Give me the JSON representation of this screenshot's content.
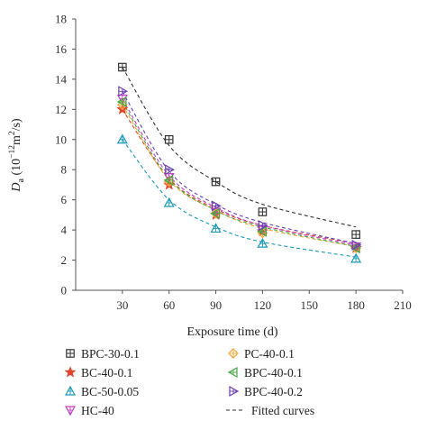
{
  "chart_data": {
    "type": "scatter",
    "xlabel": "Exposure time (d)",
    "ylabel": {
      "main": "D",
      "sub": "a",
      "pre": " (10",
      "sup1": "−12",
      "mid": "m",
      "sup2": "2",
      "post": "/s)"
    },
    "xlim": [
      0,
      210
    ],
    "ylim": [
      0,
      18
    ],
    "xticks": [
      30,
      60,
      90,
      120,
      150,
      180,
      210
    ],
    "yticks": [
      0,
      2,
      4,
      6,
      8,
      10,
      12,
      14,
      16,
      18
    ],
    "x": [
      30,
      60,
      90,
      120,
      180
    ],
    "series": [
      {
        "name": "BPC-30-0.1",
        "values": [
          14.8,
          10.0,
          7.2,
          5.2,
          3.7
        ],
        "fit": [
          14.8,
          9.6,
          7.2,
          5.7,
          4.2
        ],
        "color": "#333333",
        "marker": "boxplus"
      },
      {
        "name": "BC-40-0.1",
        "values": [
          12.0,
          7.0,
          5.0,
          3.9,
          2.8
        ],
        "fit": [
          12.0,
          7.4,
          5.4,
          4.3,
          3.1
        ],
        "color": "#e2452b",
        "marker": "star"
      },
      {
        "name": "BC-50-0.05",
        "values": [
          10.0,
          5.8,
          4.1,
          3.1,
          2.1
        ],
        "fit": [
          10.0,
          6.0,
          4.2,
          3.2,
          2.2
        ],
        "color": "#1b9bb8",
        "marker": "triangle"
      },
      {
        "name": "HC-40",
        "values": [
          12.7,
          7.5,
          5.2,
          4.0,
          2.9
        ],
        "fit": [
          12.7,
          7.6,
          5.5,
          4.3,
          3.0
        ],
        "color": "#c83fc8",
        "marker": "down-triangle"
      },
      {
        "name": "PC-40-0.1",
        "values": [
          12.3,
          7.2,
          5.1,
          3.8,
          2.8
        ],
        "fit": [
          12.3,
          7.3,
          5.3,
          4.1,
          2.9
        ],
        "color": "#f2a93b",
        "marker": "diamond"
      },
      {
        "name": "BPC-40-0.1",
        "values": [
          12.5,
          7.3,
          5.1,
          3.9,
          2.8
        ],
        "fit": [
          12.5,
          7.4,
          5.3,
          4.2,
          2.9
        ],
        "color": "#46a546",
        "marker": "left-triangle"
      },
      {
        "name": "BPC-40-0.2",
        "values": [
          13.2,
          8.0,
          5.6,
          4.3,
          3.0
        ],
        "fit": [
          13.2,
          7.9,
          5.7,
          4.5,
          3.1
        ],
        "color": "#6a3fb8",
        "marker": "right-triangle"
      }
    ],
    "fitted_label": "Fitted curves",
    "legend_placement": "bottom",
    "grid": false
  }
}
